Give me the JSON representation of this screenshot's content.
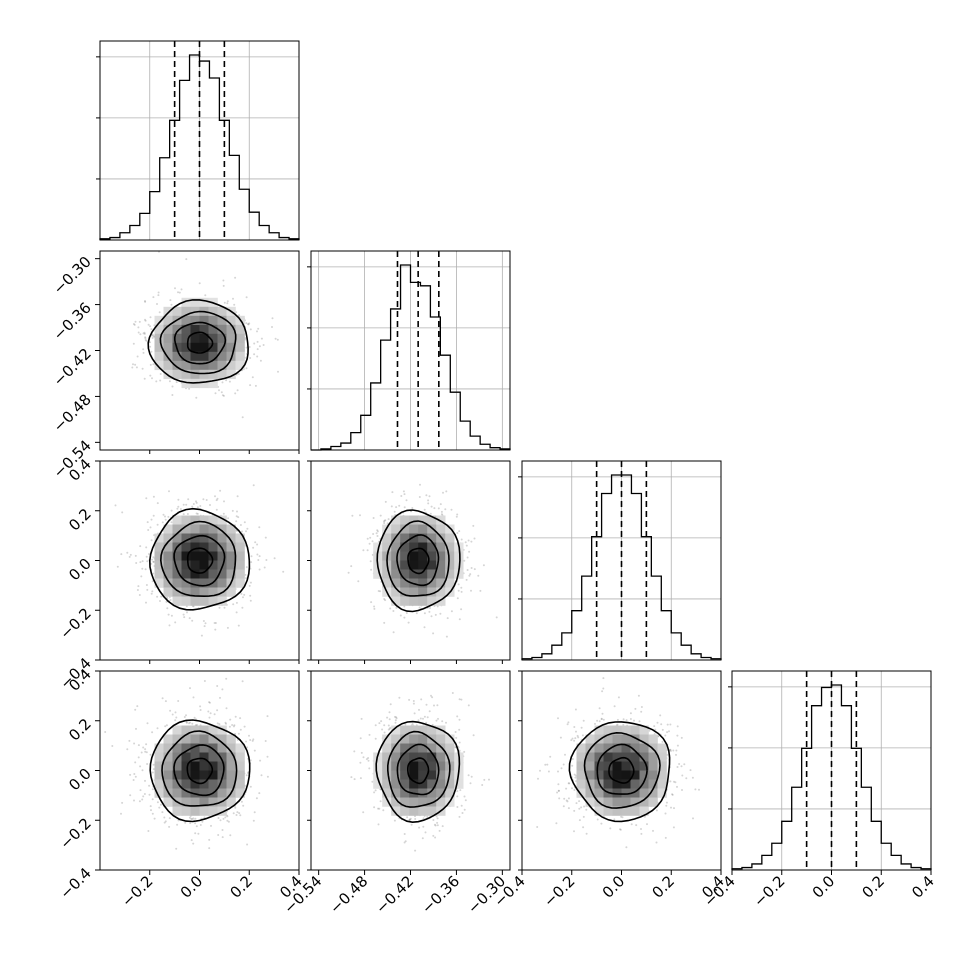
{
  "chart_data": {
    "type": "corner",
    "grid": true,
    "tick_labels": {
      "x_col0": [
        "−0.2",
        "0.0",
        "0.2",
        "0.4"
      ],
      "x_col1": [
        "−0.54",
        "−0.48",
        "−0.42",
        "−0.36",
        "−0.30"
      ],
      "x_col2": [
        "−0.4",
        "−0.2",
        "0.0",
        "0.2",
        "0.4"
      ],
      "x_col3": [
        "−0.4",
        "−0.2",
        "0.0",
        "0.2",
        "0.4"
      ],
      "y_row1": [
        "−0.30",
        "−0.36",
        "−0.42",
        "−0.48",
        "−0.54"
      ],
      "y_row2": [
        "0.4",
        "0.2",
        "0.0",
        "−0.2",
        "−0.4"
      ],
      "y_row3": [
        "0.4",
        "0.2",
        "0.0",
        "−0.2",
        "−0.4"
      ]
    },
    "parameters": [
      {
        "xlim": [
          -0.4,
          0.4
        ],
        "bins": [
          -0.4,
          -0.36,
          -0.32,
          -0.28,
          -0.24,
          -0.2,
          -0.16,
          -0.12,
          -0.08,
          -0.04,
          0.0,
          0.04,
          0.08,
          0.12,
          0.16,
          0.2,
          0.24,
          0.28,
          0.32,
          0.36,
          0.4
        ],
        "counts": [
          1,
          2,
          6,
          12,
          22,
          40,
          68,
          99,
          132,
          153,
          148,
          134,
          99,
          70,
          42,
          23,
          12,
          6,
          2,
          1
        ],
        "quantiles": [
          -0.1,
          0.0,
          0.1
        ]
      },
      {
        "xlim": [
          -0.55,
          -0.29
        ],
        "bins": [
          -0.55,
          -0.537,
          -0.524,
          -0.511,
          -0.498,
          -0.485,
          -0.472,
          -0.459,
          -0.446,
          -0.433,
          -0.42,
          -0.407,
          -0.394,
          -0.381,
          -0.368,
          -0.355,
          -0.342,
          -0.329,
          -0.316,
          -0.303,
          -0.29
        ],
        "counts": [
          0,
          1,
          3,
          6,
          15,
          30,
          58,
          95,
          122,
          160,
          145,
          142,
          115,
          82,
          50,
          25,
          12,
          5,
          2,
          1
        ],
        "quantiles": [
          -0.437,
          -0.41,
          -0.383
        ]
      },
      {
        "xlim": [
          -0.4,
          0.4
        ],
        "bins": [
          -0.4,
          -0.36,
          -0.32,
          -0.28,
          -0.24,
          -0.2,
          -0.16,
          -0.12,
          -0.08,
          -0.04,
          0.0,
          0.04,
          0.08,
          0.12,
          0.16,
          0.2,
          0.24,
          0.28,
          0.32,
          0.36,
          0.4
        ],
        "counts": [
          1,
          2,
          5,
          12,
          22,
          40,
          68,
          100,
          135,
          150,
          150,
          135,
          100,
          68,
          40,
          22,
          12,
          5,
          2,
          1
        ],
        "quantiles": [
          -0.1,
          0.0,
          0.1
        ]
      },
      {
        "xlim": [
          -0.4,
          0.4
        ],
        "bins": [
          -0.4,
          -0.36,
          -0.32,
          -0.28,
          -0.24,
          -0.2,
          -0.16,
          -0.12,
          -0.08,
          -0.04,
          0.0,
          0.04,
          0.08,
          0.12,
          0.16,
          0.2,
          0.24,
          0.28,
          0.32,
          0.36,
          0.4
        ],
        "counts": [
          1,
          2,
          5,
          12,
          22,
          40,
          68,
          100,
          135,
          150,
          152,
          135,
          100,
          68,
          40,
          22,
          12,
          5,
          2,
          1
        ],
        "quantiles": [
          -0.1,
          0.0,
          0.1
        ]
      }
    ],
    "pairs": [
      {
        "row": 1,
        "col": 0,
        "center": [
          0.0,
          -0.41
        ],
        "sigma": [
          0.1,
          0.027
        ]
      },
      {
        "row": 2,
        "col": 0,
        "center": [
          0.0,
          0.0
        ],
        "sigma": [
          0.1,
          0.1
        ]
      },
      {
        "row": 2,
        "col": 1,
        "center": [
          -0.41,
          0.0
        ],
        "sigma": [
          0.027,
          0.1
        ]
      },
      {
        "row": 3,
        "col": 0,
        "center": [
          0.0,
          0.0
        ],
        "sigma": [
          0.1,
          0.1
        ]
      },
      {
        "row": 3,
        "col": 1,
        "center": [
          -0.41,
          0.0
        ],
        "sigma": [
          0.027,
          0.1
        ]
      },
      {
        "row": 3,
        "col": 2,
        "center": [
          0.0,
          0.0
        ],
        "sigma": [
          0.1,
          0.1
        ]
      }
    ],
    "contour_levels_sigma": [
      0.5,
      1.0,
      1.5,
      2.0
    ]
  }
}
